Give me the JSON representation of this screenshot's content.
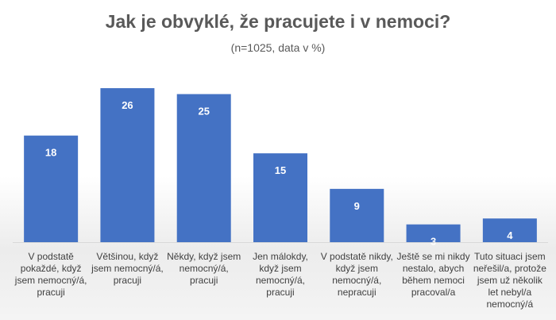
{
  "chart_data": {
    "type": "bar",
    "title": "Jak je obvyklé, že pracujete i v nemoci?",
    "subtitle": "(n=1025, data v %)",
    "categories": [
      "V podstatě pokaždé, když jsem nemocný/á, pracuji",
      "Většinou, když jsem nemocný/á, pracuji",
      "Někdy, když jsem nemocný/á, pracuji",
      "Jen málokdy, když jsem nemocný/á, pracuji",
      "V podstatě nikdy, když jsem nemocný/á, nepracuji",
      "Ještě se mi nikdy nestalo, abych během nemoci pracoval/a",
      "Tuto situaci jsem neřešil/a, protože jsem už několik let nebyl/a nemocný/á"
    ],
    "values": [
      18,
      26,
      25,
      15,
      9,
      3,
      4
    ],
    "ylim": [
      0,
      26
    ],
    "grid": false,
    "bar_color": "#4472C4"
  }
}
